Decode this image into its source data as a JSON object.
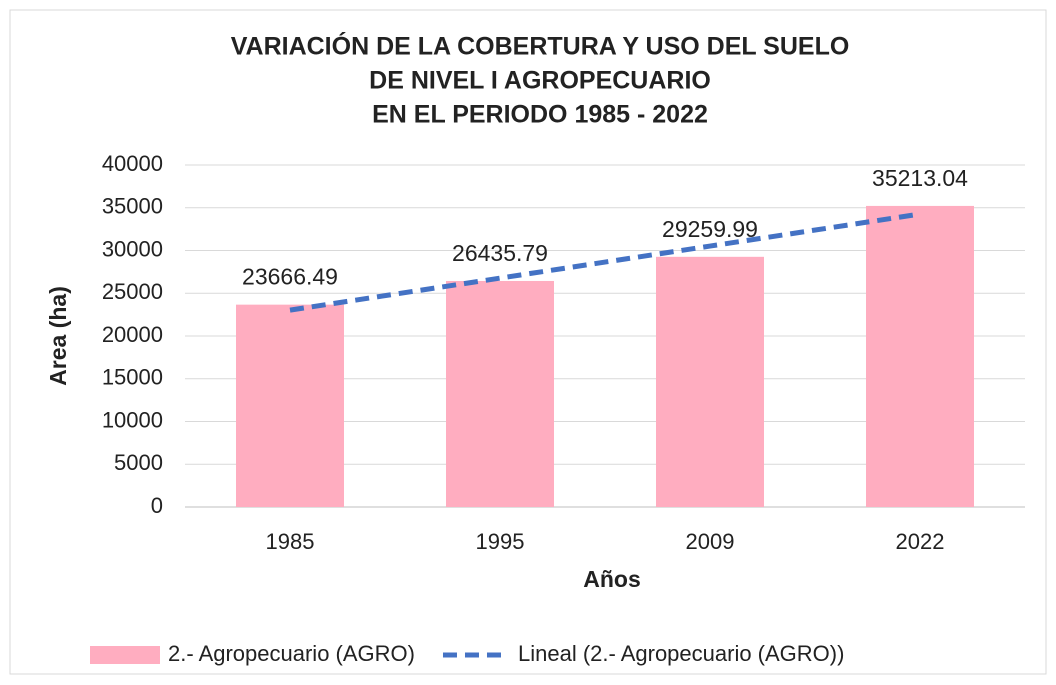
{
  "chart_data": {
    "type": "bar",
    "title": [
      "VARIACIÓN DE LA COBERTURA Y USO DEL SUELO",
      "DE NIVEL I AGROPECUARIO",
      "EN EL PERIODO 1985 - 2022"
    ],
    "x_label": "Años",
    "y_label": "Area (ha)",
    "categories": [
      "1985",
      "1995",
      "2009",
      "2022"
    ],
    "series": [
      {
        "name": "2.- Agropecuario (AGRO)",
        "color": "#ffadc0",
        "values": [
          23666.49,
          26435.79,
          29259.99,
          35213.04
        ]
      },
      {
        "name": "Lineal (2.- Agropecuario (AGRO))",
        "color": "#4472c4",
        "type": "line",
        "dashed": true,
        "values": [
          23024.25,
          26770.63,
          30517.02,
          34263.41
        ]
      }
    ],
    "ylim": [
      0,
      40000
    ],
    "yticks": [
      0,
      5000,
      10000,
      15000,
      20000,
      25000,
      30000,
      35000,
      40000
    ],
    "grid": true,
    "legend": "bottom"
  }
}
